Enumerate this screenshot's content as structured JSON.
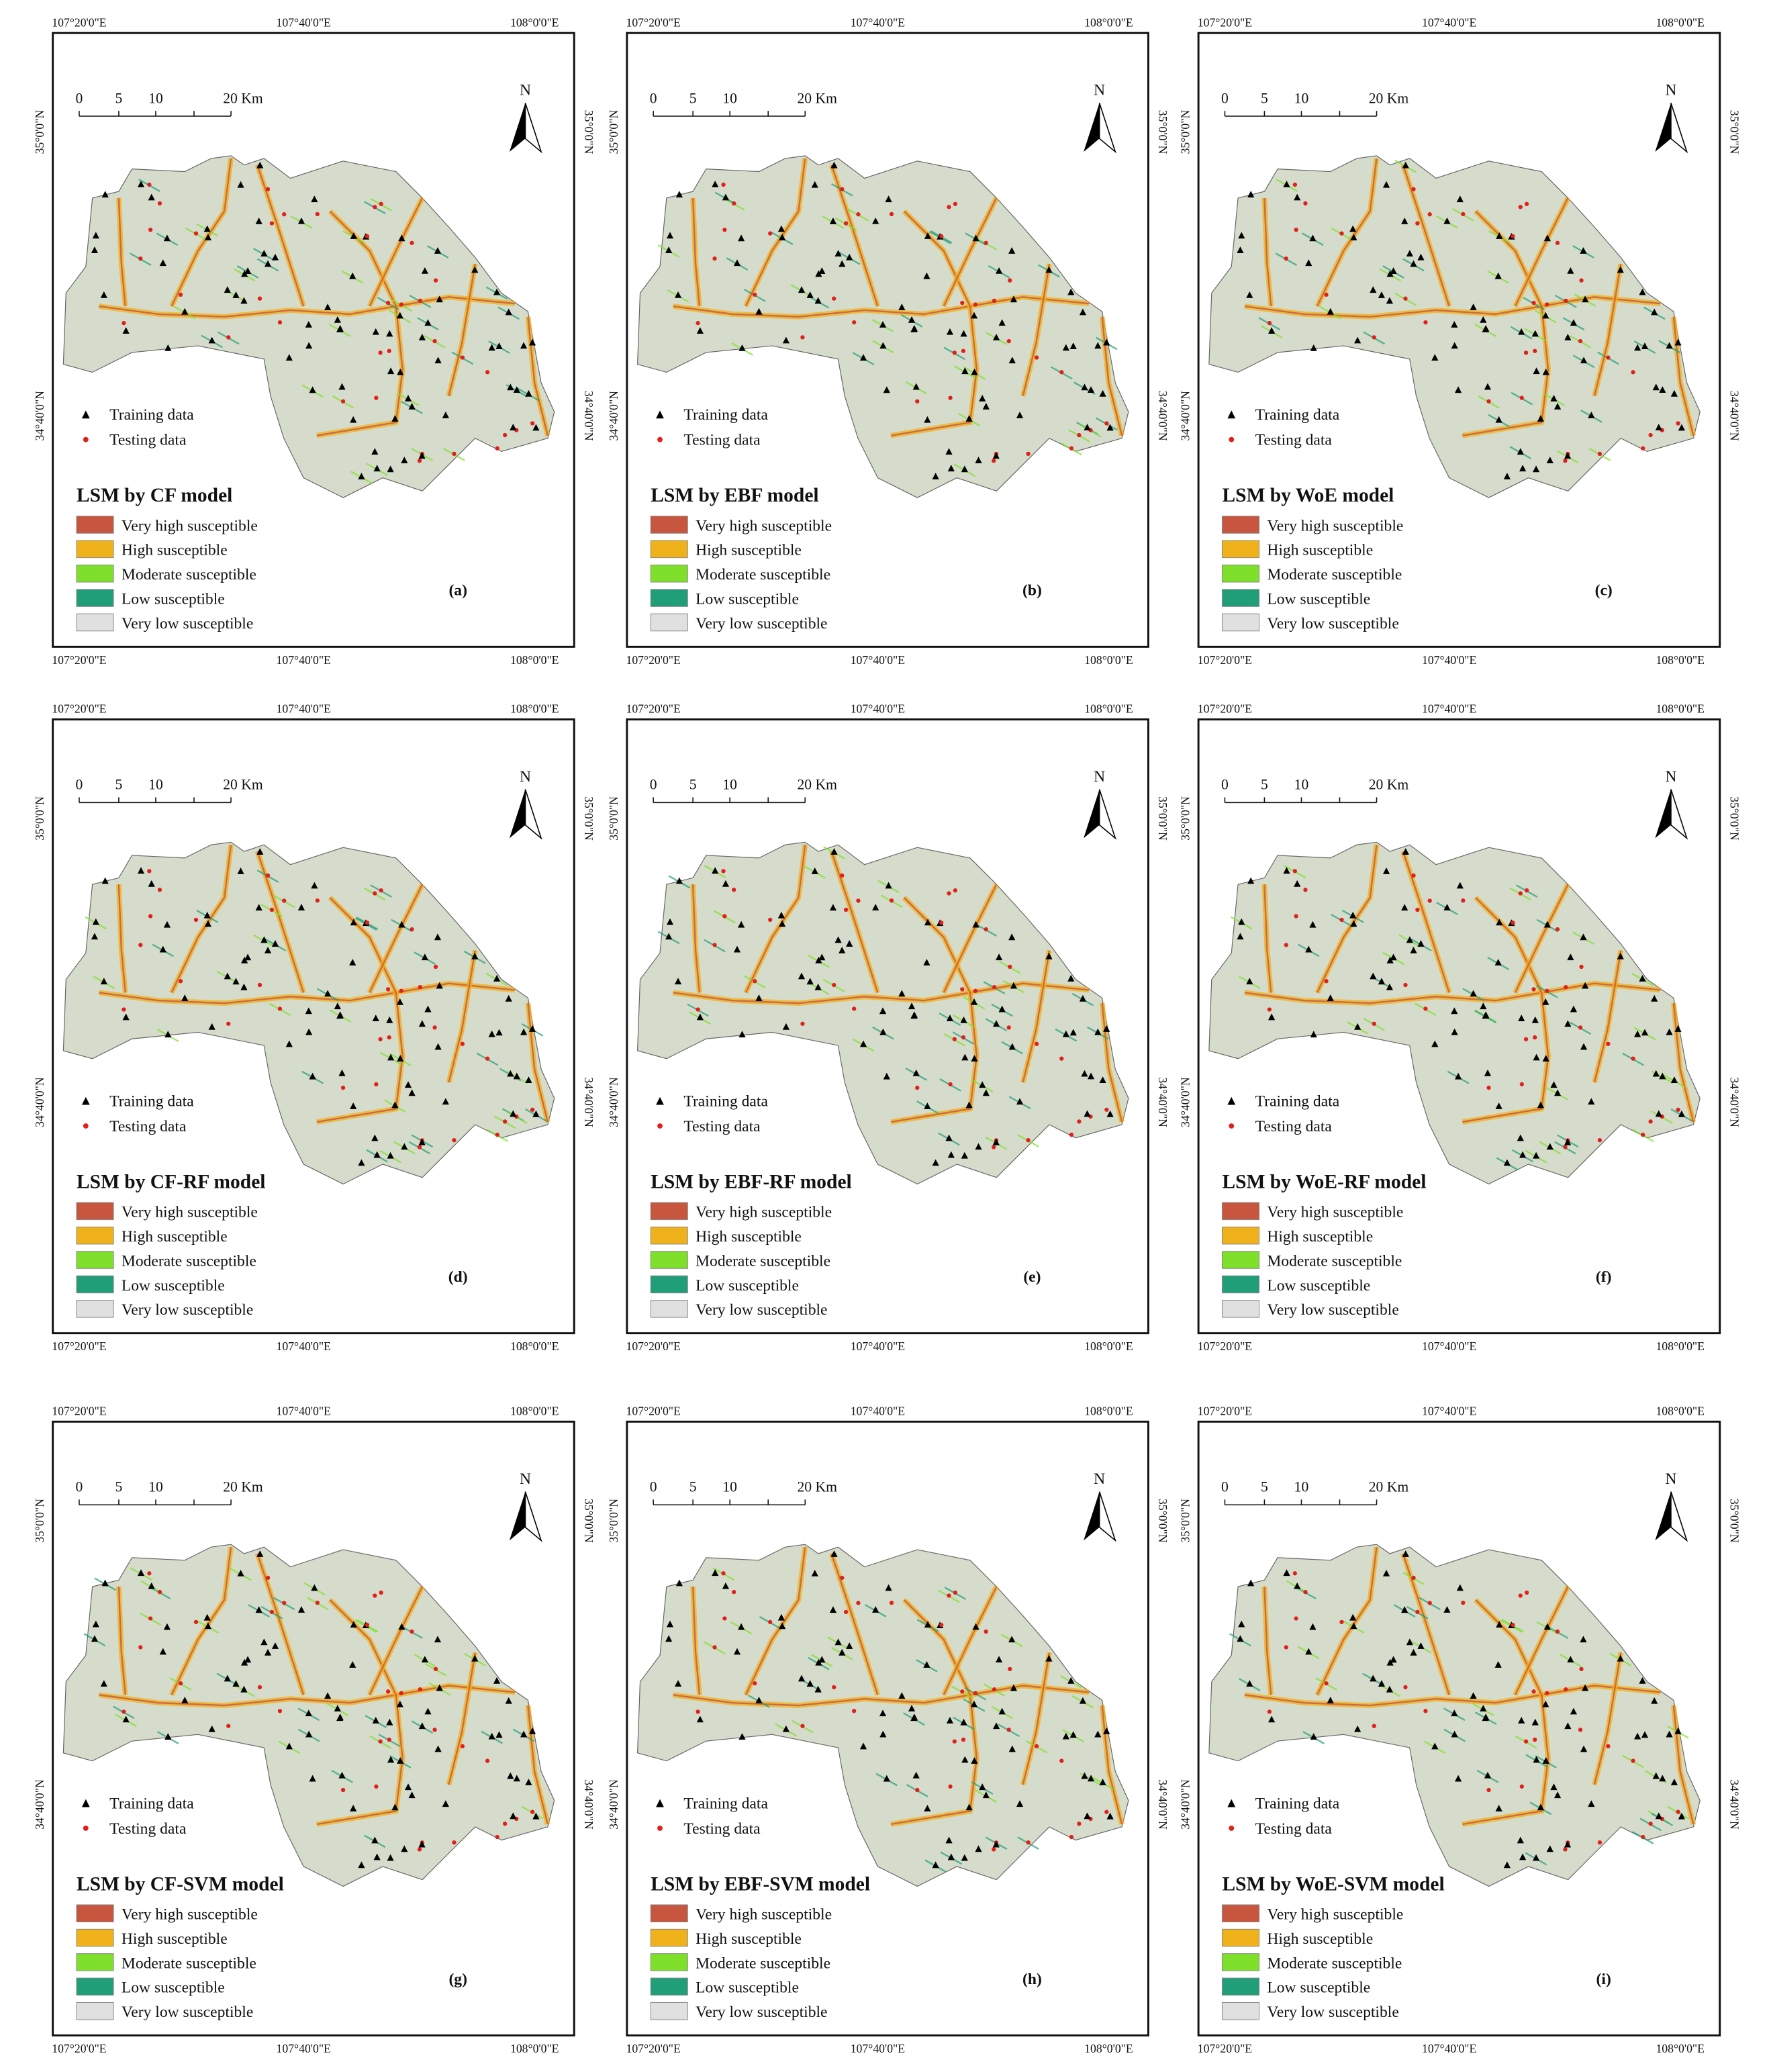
{
  "panels": [
    {
      "title": "LSM by CF model",
      "label": "(a)"
    },
    {
      "title": "LSM by EBF model",
      "label": "(b)"
    },
    {
      "title": "LSM by WoE model",
      "label": "(c)"
    },
    {
      "title": "LSM by CF-RF model",
      "label": "(d)"
    },
    {
      "title": "LSM by EBF-RF model",
      "label": "(e)"
    },
    {
      "title": "LSM by WoE-RF model",
      "label": "(f)"
    },
    {
      "title": "LSM by CF-SVM model",
      "label": "(g)"
    },
    {
      "title": "LSM by EBF-SVM model",
      "label": "(h)"
    },
    {
      "title": "LSM by WoE-SVM model",
      "label": "(i)"
    }
  ],
  "legend": [
    {
      "label": "Very high susceptible",
      "color": "#c8553d"
    },
    {
      "label": "High susceptible",
      "color": "#f0b21b"
    },
    {
      "label": "Moderate susceptible",
      "color": "#7ee02a"
    },
    {
      "label": "Low susceptible",
      "color": "#1f9e78"
    },
    {
      "label": "Very low susceptible",
      "color": "#e0e0e0"
    }
  ],
  "samples": {
    "training": "Training data",
    "testing": "Testing data"
  },
  "longitude_labels": [
    "107°20'0\"E",
    "107°40'0\"E",
    "108°0'0\"E"
  ],
  "latitude_labels": [
    "35°0'0\"N",
    "34°40'0\"N"
  ],
  "scale_bar": [
    "0",
    "5",
    "10",
    "20 Km"
  ],
  "north": "N"
}
